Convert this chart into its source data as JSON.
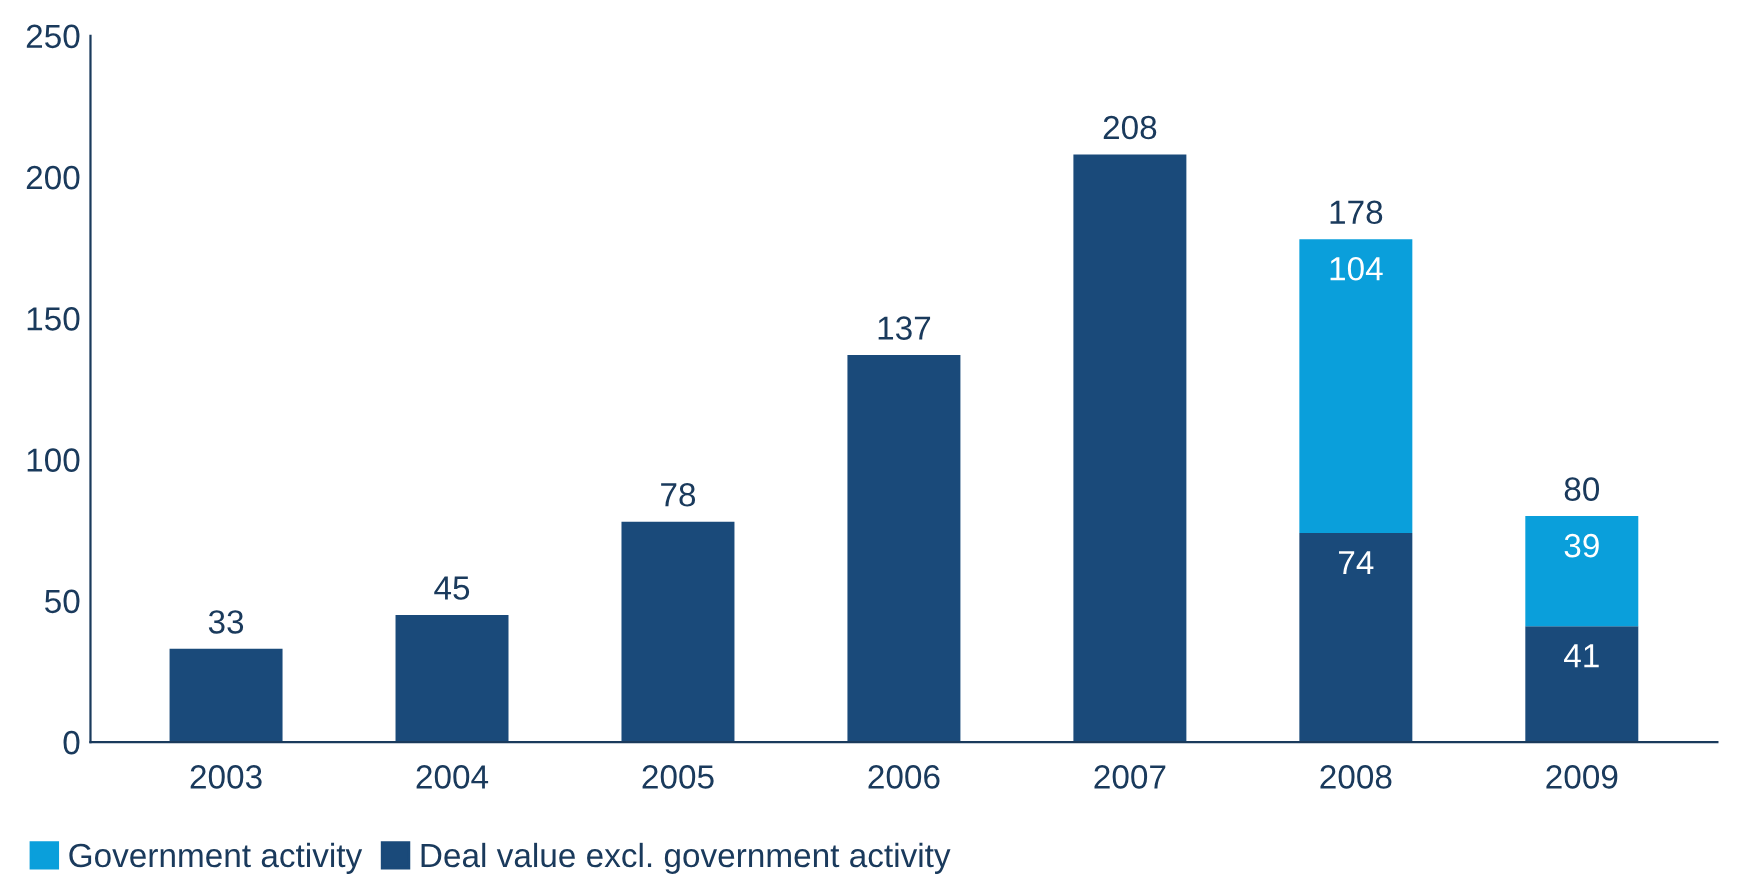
{
  "chart_data": {
    "type": "bar",
    "stacked": true,
    "categories": [
      "2003",
      "2004",
      "2005",
      "2006",
      "2007",
      "2008",
      "2009"
    ],
    "series": [
      {
        "name": "Deal value excl. government activity",
        "color": "#1a4a7a",
        "values": [
          33,
          45,
          78,
          137,
          208,
          74,
          41
        ],
        "value_labels": [
          null,
          null,
          null,
          null,
          null,
          "74",
          "41"
        ]
      },
      {
        "name": "Government activity",
        "color": "#0a9fdb",
        "values": [
          null,
          null,
          null,
          null,
          null,
          104,
          39
        ],
        "value_labels": [
          null,
          null,
          null,
          null,
          null,
          "104",
          "39"
        ]
      }
    ],
    "totals": [
      "33",
      "45",
      "78",
      "137",
      "208",
      "178",
      "80"
    ],
    "ylim": [
      0,
      250
    ],
    "yticks": [
      0,
      50,
      100,
      150,
      200,
      250
    ],
    "grid": false,
    "legend": "bottom left"
  }
}
